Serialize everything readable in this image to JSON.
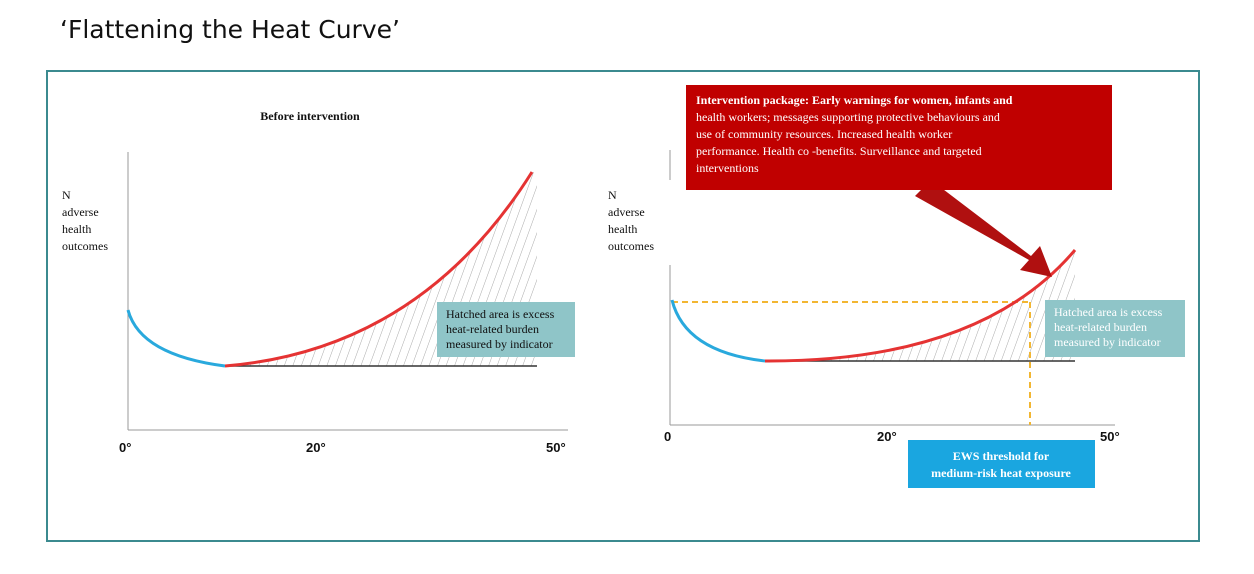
{
  "header": {
    "title": "‘Flattening the Heat Curve’"
  },
  "left_panel": {
    "title": "Before intervention",
    "y_label": [
      "N",
      "adverse",
      "health",
      "outcomes"
    ],
    "x_ticks": [
      "0°",
      "20°",
      "50°"
    ],
    "callout": [
      "Hatched area is excess",
      "heat-related burden",
      "measured by indicator"
    ]
  },
  "right_panel": {
    "y_label": [
      "N",
      "adverse",
      "health",
      "outcomes"
    ],
    "x_ticks": [
      "0",
      "20°",
      "50°"
    ],
    "callout": [
      "Hatched area is excess",
      "heat-related burden",
      "measured by indicator"
    ],
    "intervention_box": [
      "Intervention package: Early warnings for women, infants and",
      "health workers; messages supporting protective behaviours and",
      "use of community resources. Increased health worker",
      "performance. Health co -benefits. Surveillance and targeted",
      "interventions"
    ],
    "threshold_box": [
      "EWS threshold for",
      "medium-risk heat exposure"
    ]
  }
}
